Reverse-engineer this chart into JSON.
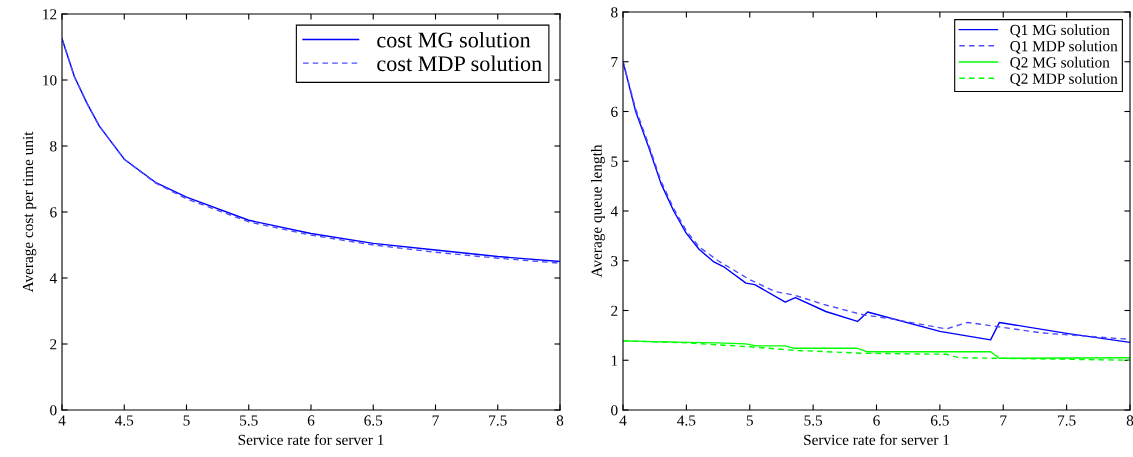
{
  "chart_data": [
    {
      "type": "line",
      "xlabel": "Service rate for server 1",
      "ylabel": "Average cost per time unit",
      "xlim": [
        4,
        8
      ],
      "ylim": [
        0,
        12
      ],
      "xticks": [
        4,
        4.5,
        5,
        5.5,
        6,
        6.5,
        7,
        7.5,
        8
      ],
      "yticks": [
        0,
        2,
        4,
        6,
        8,
        10,
        12
      ],
      "legend": "top right",
      "grid": false,
      "series": [
        {
          "name": "cost MG solution",
          "color": "#0000ff",
          "line_style": "solid",
          "x": [
            4,
            4.1,
            4.2,
            4.3,
            4.5,
            4.75,
            5,
            5.5,
            6,
            6.5,
            7,
            7.5,
            8
          ],
          "values": [
            11.25,
            10.1,
            9.3,
            8.6,
            7.6,
            6.9,
            6.45,
            5.75,
            5.35,
            5.05,
            4.85,
            4.65,
            4.5
          ]
        },
        {
          "name": "cost MDP solution",
          "color": "#4d4dff",
          "line_style": "dashed",
          "x": [
            4,
            4.1,
            4.2,
            4.3,
            4.5,
            4.75,
            5,
            5.5,
            6,
            6.5,
            7,
            7.5,
            8
          ],
          "values": [
            11.25,
            10.1,
            9.3,
            8.6,
            7.6,
            6.88,
            6.4,
            5.7,
            5.3,
            5.0,
            4.78,
            4.6,
            4.45
          ]
        }
      ]
    },
    {
      "type": "line",
      "xlabel": "Service rate for server 1",
      "ylabel": "Average queue length",
      "xlim": [
        4,
        8
      ],
      "ylim": [
        0,
        8
      ],
      "xticks": [
        4,
        4.5,
        5,
        5.5,
        6,
        6.5,
        7,
        7.5,
        8
      ],
      "yticks": [
        0,
        1,
        2,
        3,
        4,
        5,
        6,
        7,
        8
      ],
      "legend": "top right",
      "grid": false,
      "series": [
        {
          "name": "Q1 MG solution",
          "color": "#0000ff",
          "line_style": "solid",
          "x": [
            4,
            4.1,
            4.2,
            4.3,
            4.4,
            4.5,
            4.6,
            4.72,
            4.8,
            4.97,
            5.04,
            5.28,
            5.36,
            5.6,
            5.85,
            5.93,
            6.5,
            6.9,
            6.97,
            7.5,
            8
          ],
          "values": [
            7.0,
            6.0,
            5.3,
            4.55,
            4.0,
            3.55,
            3.23,
            2.97,
            2.87,
            2.55,
            2.52,
            2.17,
            2.26,
            1.98,
            1.78,
            1.97,
            1.58,
            1.41,
            1.76,
            1.54,
            1.36
          ]
        },
        {
          "name": "Q1 MDP solution",
          "color": "#4d4dff",
          "line_style": "dashed",
          "x": [
            4,
            4.1,
            4.2,
            4.3,
            4.4,
            4.5,
            4.6,
            4.75,
            5,
            5.2,
            5.35,
            5.6,
            5.9,
            6.1,
            6.55,
            6.72,
            7,
            7.3,
            8
          ],
          "values": [
            7.0,
            6.05,
            5.35,
            4.6,
            4.05,
            3.6,
            3.28,
            3.0,
            2.62,
            2.38,
            2.31,
            2.11,
            1.91,
            1.84,
            1.63,
            1.76,
            1.66,
            1.55,
            1.42
          ]
        },
        {
          "name": "Q2 MG solution",
          "color": "#00ff00",
          "line_style": "solid",
          "x": [
            4,
            4.5,
            4.75,
            4.97,
            5.05,
            5.28,
            5.35,
            5.85,
            5.93,
            6.9,
            6.97,
            8
          ],
          "values": [
            1.39,
            1.36,
            1.35,
            1.33,
            1.29,
            1.29,
            1.24,
            1.24,
            1.17,
            1.17,
            1.04,
            1.05
          ]
        },
        {
          "name": "Q2 MDP solution",
          "color": "#00ff00",
          "line_style": "dashed",
          "x": [
            4,
            4.5,
            5,
            5.35,
            5.9,
            6.55,
            6.65,
            7.5,
            8
          ],
          "values": [
            1.39,
            1.35,
            1.27,
            1.2,
            1.14,
            1.12,
            1.05,
            1.02,
            1.0
          ]
        }
      ]
    }
  ]
}
